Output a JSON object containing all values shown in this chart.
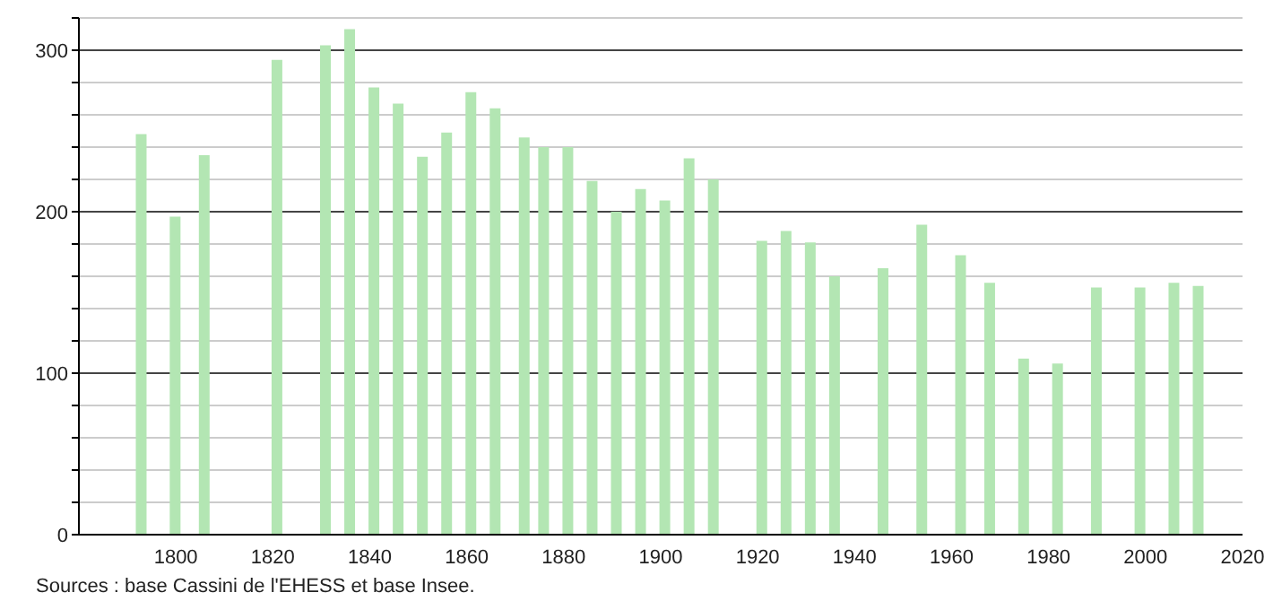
{
  "chart_data": {
    "type": "bar",
    "x": [
      1793,
      1800,
      1806,
      1821,
      1831,
      1836,
      1841,
      1846,
      1851,
      1856,
      1861,
      1866,
      1872,
      1876,
      1881,
      1886,
      1891,
      1896,
      1901,
      1906,
      1911,
      1921,
      1926,
      1931,
      1936,
      1946,
      1954,
      1962,
      1968,
      1975,
      1982,
      1990,
      1999,
      2006,
      2011
    ],
    "values": [
      248,
      197,
      235,
      294,
      303,
      313,
      277,
      267,
      234,
      249,
      274,
      264,
      246,
      240,
      240,
      219,
      200,
      214,
      207,
      233,
      220,
      182,
      188,
      181,
      160,
      165,
      192,
      173,
      156,
      109,
      106,
      153,
      153,
      156,
      154
    ],
    "color": "#b3e6b3",
    "xlim": [
      1780,
      2020
    ],
    "xticks": [
      1800,
      1820,
      1840,
      1860,
      1880,
      1900,
      1920,
      1940,
      1960,
      1980,
      2000,
      2020
    ],
    "ylim": [
      0,
      320
    ],
    "yticks": [
      0,
      {
        "value": 20,
        "label": null
      },
      {
        "value": 40,
        "label": null
      },
      {
        "value": 60,
        "label": null
      },
      {
        "value": 80,
        "label": null
      },
      100,
      {
        "value": 120,
        "label": null
      },
      {
        "value": 140,
        "label": null
      },
      {
        "value": 160,
        "label": null
      },
      {
        "value": 180,
        "label": null
      },
      200,
      {
        "value": 220,
        "label": null
      },
      {
        "value": 240,
        "label": null
      },
      {
        "value": 260,
        "label": null
      },
      {
        "value": 280,
        "label": null
      },
      300,
      {
        "value": 320,
        "label": null
      }
    ],
    "grid": true,
    "annotations": [
      "Sources : base Cassini de l'EHESS et base Insee."
    ]
  }
}
